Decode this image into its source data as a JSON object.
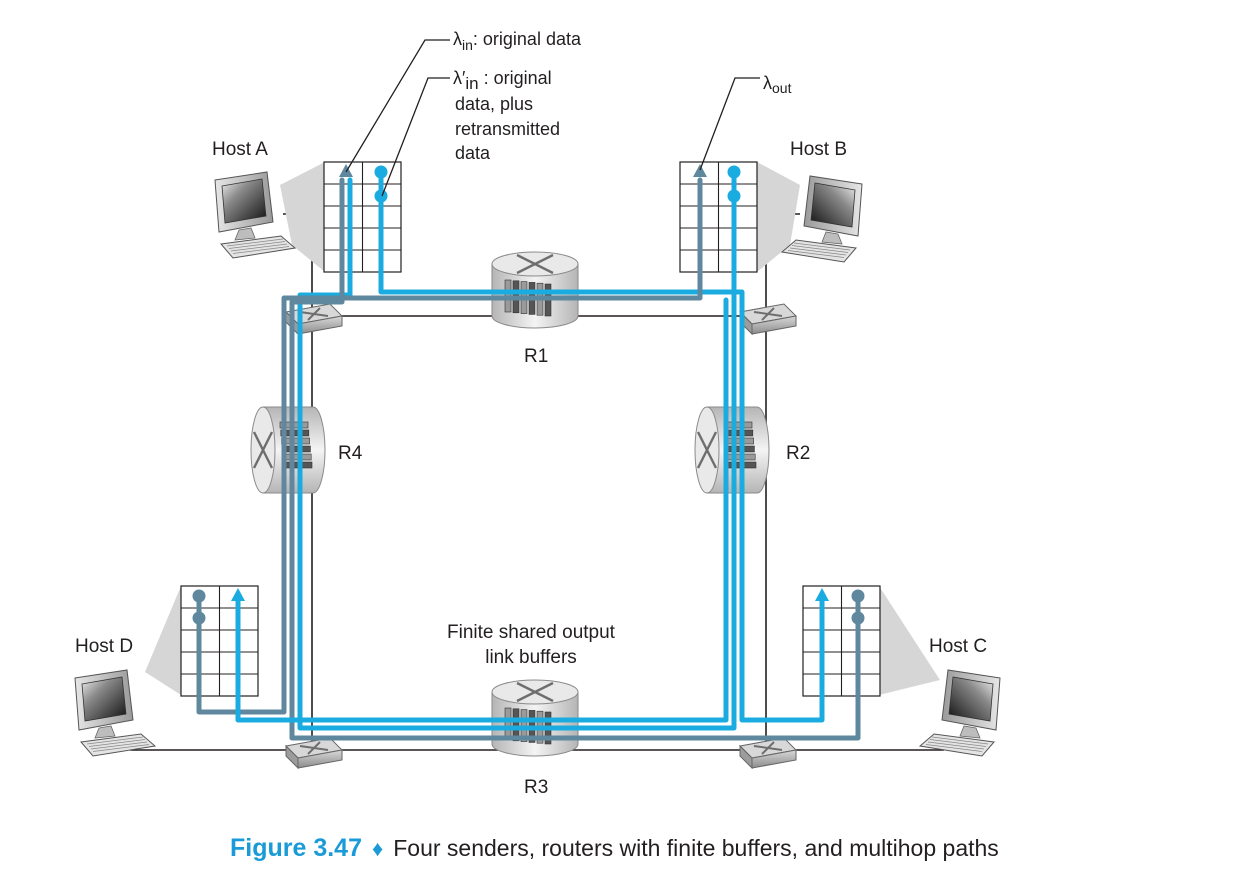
{
  "hosts": {
    "a": "Host A",
    "b": "Host B",
    "c": "Host C",
    "d": "Host D"
  },
  "routers": {
    "r1": "R1",
    "r2": "R2",
    "r3": "R3",
    "r4": "R4"
  },
  "annotations": {
    "lambda_in_symbol": "λ",
    "lambda_in_sub": "in",
    "lambda_in_text": ": original data",
    "lambda_prime_symbol": "λ′",
    "lambda_prime_sub": "in",
    "lambda_prime_line1": " : original",
    "lambda_prime_line2": "data, plus",
    "lambda_prime_line3": "retransmitted",
    "lambda_prime_line4": "data",
    "lambda_out_symbol": "λ",
    "lambda_out_sub": "out",
    "buffers_line1": "Finite shared output",
    "buffers_line2": "link buffers"
  },
  "caption": {
    "figure": "Figure 3.47",
    "separator": "♦",
    "text": "Four senders, routers with finite buffers, and multihop paths"
  },
  "colors": {
    "light_blue_path": "#1aace0",
    "dark_blue_path": "#5f889e",
    "caption_accent": "#1a9bd7",
    "wire": "#231f20"
  }
}
